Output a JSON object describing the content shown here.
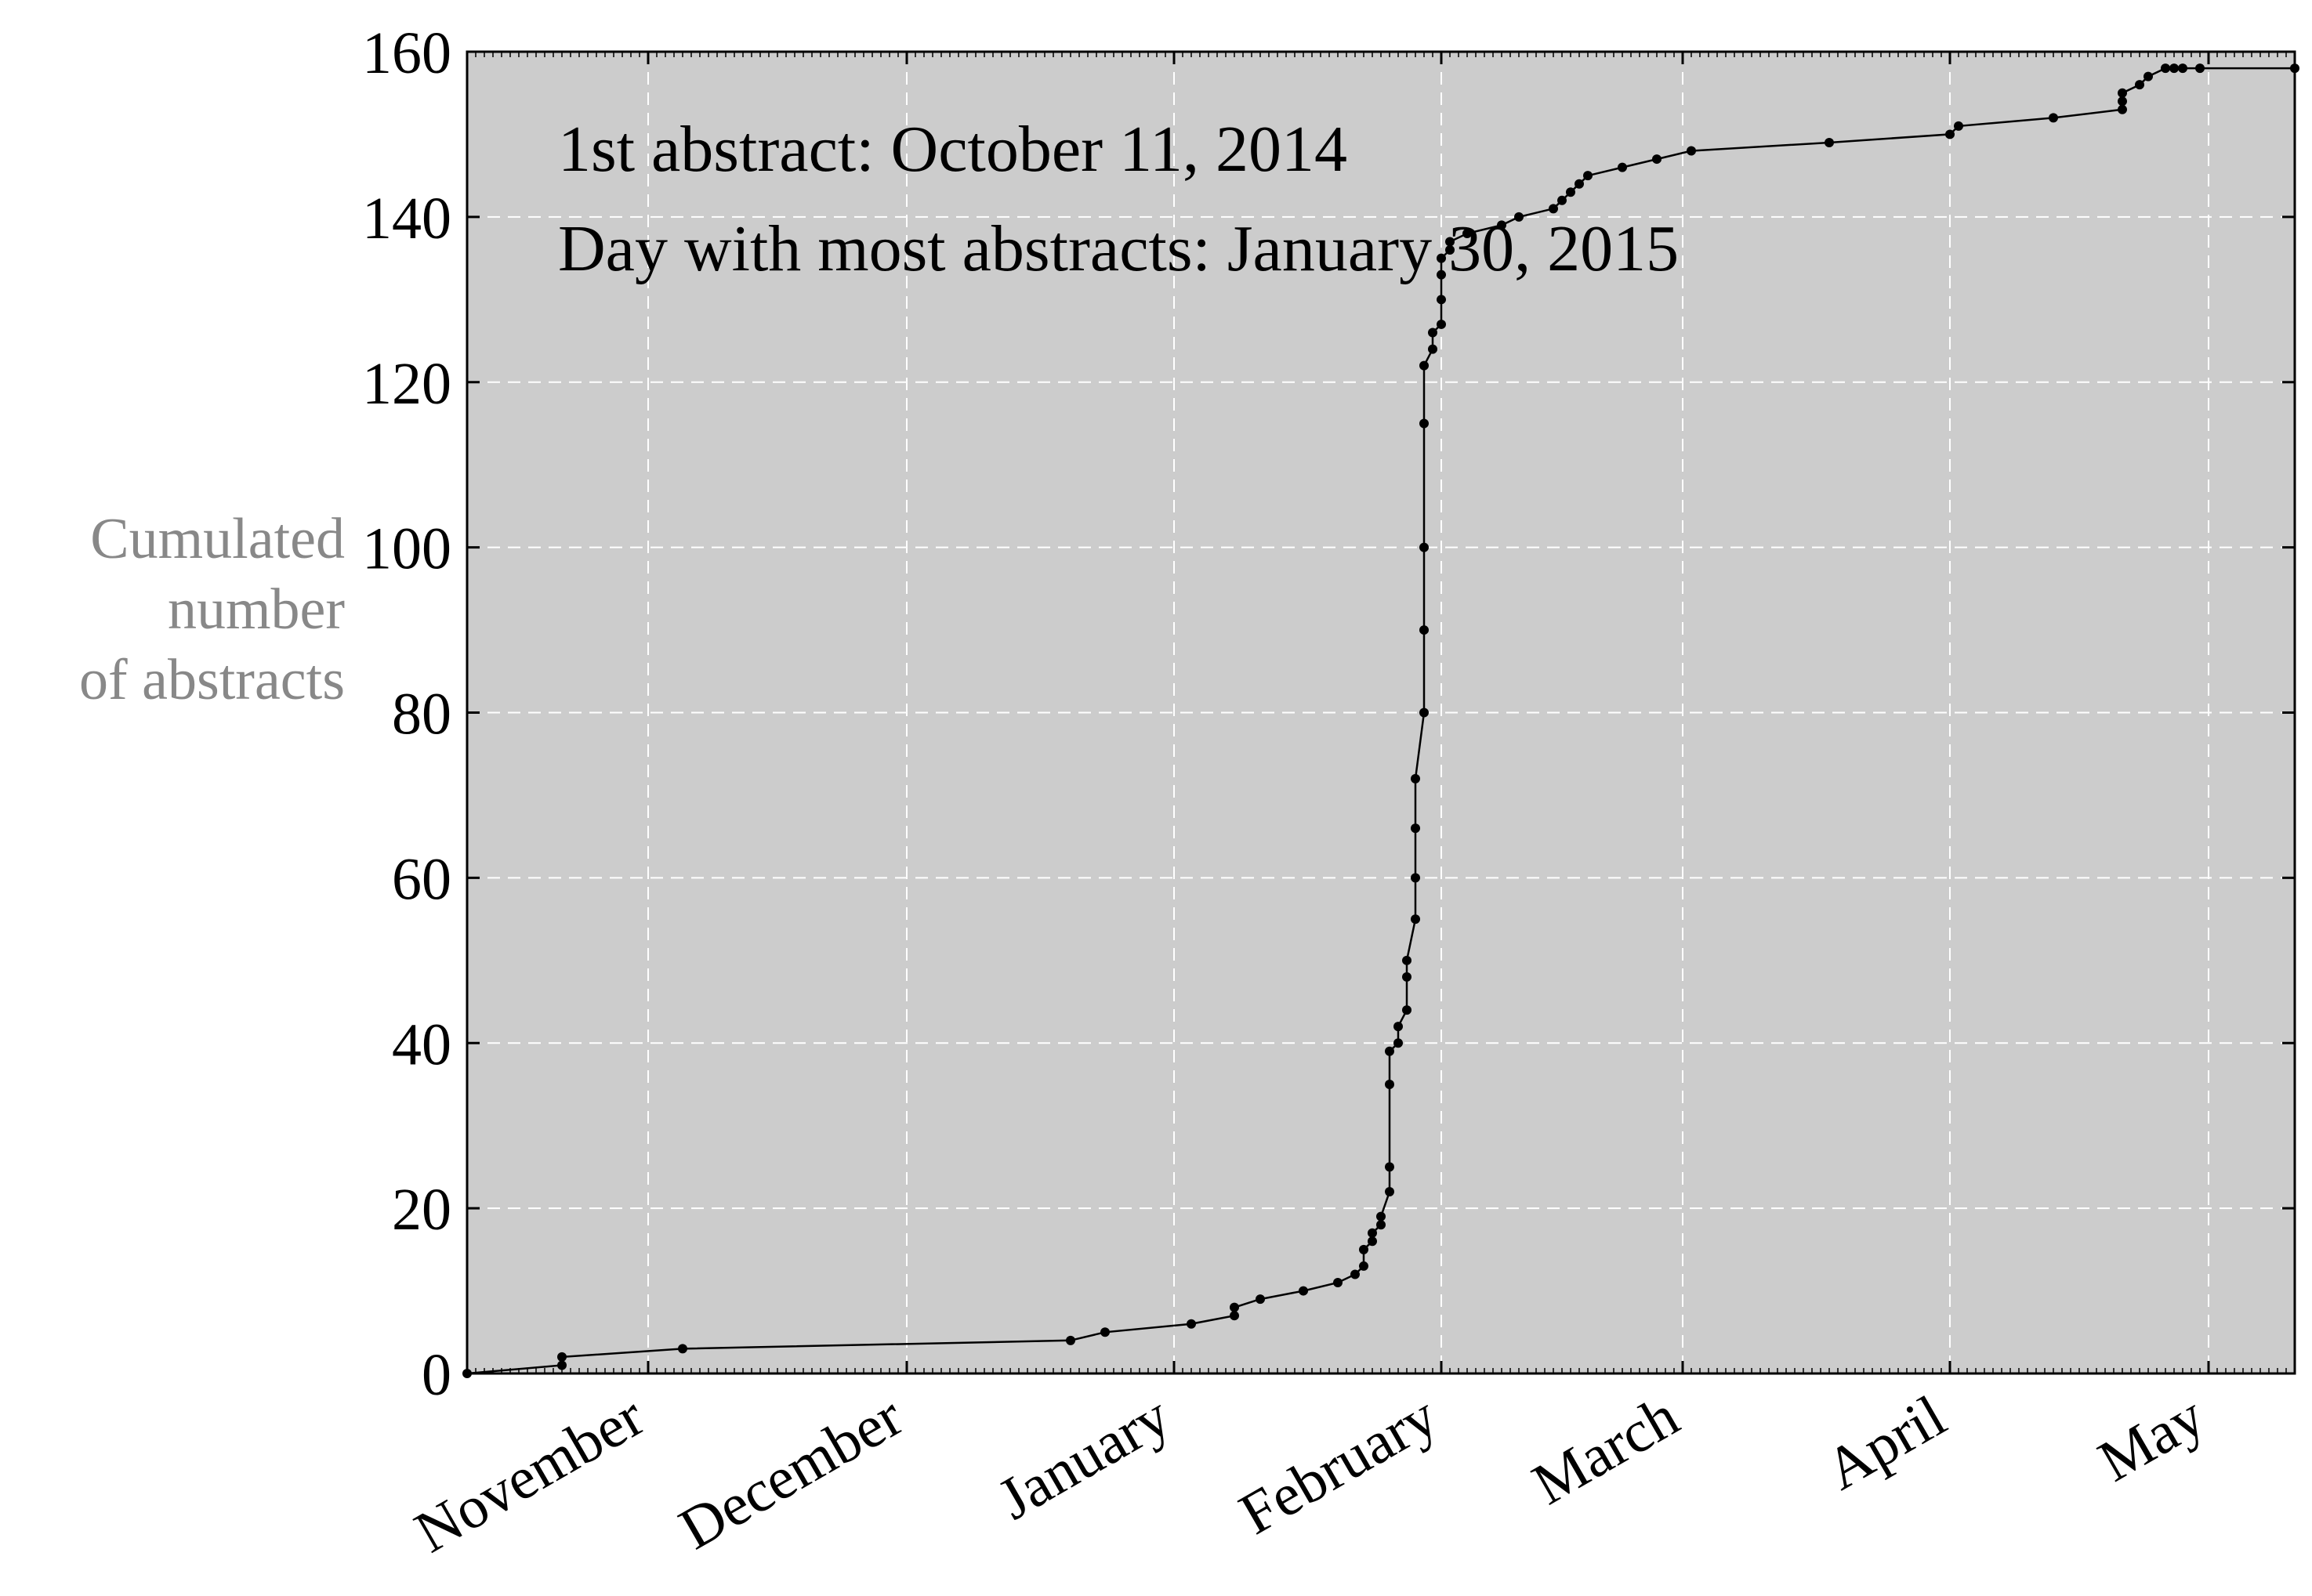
{
  "chart_data": {
    "type": "line",
    "title": "",
    "xlabel": "",
    "ylabel": "Cumulated number of abstracts",
    "ylabel_lines": [
      "Cumulated",
      "number",
      "of abstracts"
    ],
    "annotations": [
      "1st abstract: October 11, 2014",
      "Day with most abstracts: January 30, 2015"
    ],
    "ylim": [
      0,
      160
    ],
    "yticks": [
      0,
      20,
      40,
      60,
      80,
      100,
      120,
      140,
      160
    ],
    "ytick_labels": [
      "0",
      "20",
      "40",
      "60",
      "80",
      "100",
      "120",
      "140",
      "160"
    ],
    "xlim": [
      "2014-10-11",
      "2015-05-11"
    ],
    "xticks": [
      "2014-11-01",
      "2014-12-01",
      "2015-01-01",
      "2015-02-01",
      "2015-03-01",
      "2015-04-01",
      "2015-05-01"
    ],
    "xtick_labels": [
      "November",
      "December",
      "January",
      "February",
      "March",
      "April",
      "May"
    ],
    "grid": true,
    "colors": {
      "background": "#cccccc",
      "line": "#000000",
      "grid": "#ffffff",
      "ylabel": "#888888"
    },
    "series": [
      {
        "x": [
          "2014-10-11",
          "2014-10-22",
          "2014-10-22",
          "2014-11-05",
          "2014-12-20",
          "2014-12-24",
          "2015-01-03",
          "2015-01-08",
          "2015-01-08",
          "2015-01-11",
          "2015-01-16",
          "2015-01-20",
          "2015-01-22",
          "2015-01-23",
          "2015-01-23",
          "2015-01-24",
          "2015-01-24",
          "2015-01-25",
          "2015-01-25",
          "2015-01-26",
          "2015-01-26",
          "2015-01-26",
          "2015-01-26",
          "2015-01-27",
          "2015-01-27",
          "2015-01-28",
          "2015-01-28",
          "2015-01-28",
          "2015-01-29",
          "2015-01-29",
          "2015-01-29",
          "2015-01-29",
          "2015-01-30",
          "2015-01-30",
          "2015-01-30",
          "2015-01-30",
          "2015-01-30",
          "2015-01-31",
          "2015-01-31",
          "2015-02-01",
          "2015-02-01",
          "2015-02-01",
          "2015-02-01",
          "2015-02-02",
          "2015-02-02",
          "2015-02-04",
          "2015-02-08",
          "2015-02-10",
          "2015-02-14",
          "2015-02-15",
          "2015-02-16",
          "2015-02-17",
          "2015-02-18",
          "2015-02-22",
          "2015-02-26",
          "2015-03-02",
          "2015-03-18",
          "2015-04-01",
          "2015-04-02",
          "2015-04-13",
          "2015-04-21",
          "2015-04-21",
          "2015-04-21",
          "2015-04-23",
          "2015-04-24",
          "2015-04-26",
          "2015-04-27",
          "2015-04-28",
          "2015-04-30",
          "2015-05-11"
        ],
        "y": [
          0,
          1,
          2,
          3,
          4,
          5,
          6,
          7,
          8,
          9,
          10,
          11,
          12,
          13,
          15,
          16,
          17,
          18,
          19,
          22,
          25,
          35,
          39,
          40,
          42,
          44,
          48,
          50,
          55,
          60,
          66,
          72,
          80,
          90,
          100,
          115,
          122,
          124,
          126,
          127,
          130,
          133,
          135,
          136,
          137,
          138,
          139,
          140,
          141,
          142,
          143,
          144,
          145,
          146,
          147,
          148,
          149,
          150,
          151,
          152,
          153,
          154,
          155,
          156,
          157,
          158,
          158,
          158,
          158,
          158
        ]
      }
    ]
  }
}
